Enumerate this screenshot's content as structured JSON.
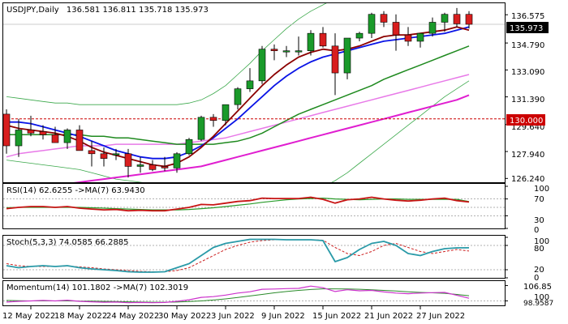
{
  "main": {
    "header": {
      "symbol": "USDJPY,Daily",
      "ohlc": "136.581 136.811 135.718 135.973"
    },
    "price_labels": [
      "136.575",
      "134.790",
      "133.090",
      "131.390",
      "129.640",
      "127.940",
      "126.240"
    ],
    "current_price": "135.973",
    "level_label": "130.000"
  },
  "rsi": {
    "header": "RSI(14) 62.6255  ->MA(7) 63.9430",
    "levels": [
      "100",
      "70",
      "30",
      "0"
    ]
  },
  "stoch": {
    "header": "Stoch(5,3,3) 74.0585 66.2885",
    "levels": [
      "100",
      "80",
      "20",
      "0"
    ]
  },
  "momentum": {
    "header": "Momentum(14) 101.1802  ->MA(7) 102.3019",
    "levels": [
      "106.85",
      "100",
      "98.9587"
    ]
  },
  "date_labels": [
    "12 May 2022",
    "18 May 2022",
    "24 May 2022",
    "30 May 2022",
    "3 Jun 2022",
    "9 Jun 2022",
    "15 Jun 2022",
    "21 Jun 2022",
    "27 Jun 2022"
  ],
  "colors": {
    "bull": "#1a9a2a",
    "bear": "#d81e1e",
    "level_line": "#cc0000",
    "level_box": "#cc0000",
    "price_box": "#000000",
    "ma_dark_red": "#8b0000",
    "ma_blue": "#0a14e6",
    "ma_green": "#1f8a1f",
    "ma_pink": "#e87ae8",
    "ma_magenta": "#e01ed0",
    "bands": "#3aa84a",
    "rsi_line": "#c81414",
    "rsi_ma": "#2a9a2a",
    "stoch_main": "#2a9aa8",
    "stoch_signal": "#cc2020",
    "mom_main": "#cc33cc",
    "mom_ma": "#2a8a2a"
  },
  "chart_data": {
    "type": "candlestick",
    "dates": [
      "2022-05-10",
      "2022-05-11",
      "2022-05-12",
      "2022-05-13",
      "2022-05-16",
      "2022-05-17",
      "2022-05-18",
      "2022-05-19",
      "2022-05-20",
      "2022-05-23",
      "2022-05-24",
      "2022-05-25",
      "2022-05-26",
      "2022-05-27",
      "2022-05-30",
      "2022-05-31",
      "2022-06-01",
      "2022-06-02",
      "2022-06-03",
      "2022-06-06",
      "2022-06-07",
      "2022-06-08",
      "2022-06-09",
      "2022-06-10",
      "2022-06-13",
      "2022-06-14",
      "2022-06-15",
      "2022-06-16",
      "2022-06-17",
      "2022-06-20",
      "2022-06-21",
      "2022-06-22",
      "2022-06-23",
      "2022-06-24",
      "2022-06-27",
      "2022-06-28",
      "2022-06-29",
      "2022-06-30",
      "2022-07-01"
    ],
    "open": [
      130.3,
      128.3,
      129.3,
      129.2,
      129.0,
      128.5,
      129.3,
      128.0,
      127.8,
      127.8,
      127.8,
      127.0,
      127.1,
      127.0,
      126.9,
      127.8,
      128.7,
      130.1,
      129.9,
      130.9,
      131.9,
      132.4,
      134.4,
      134.3,
      134.3,
      134.3,
      135.4,
      134.6,
      132.9,
      135.1,
      135.4,
      136.6,
      136.1,
      135.3,
      134.9,
      135.4,
      136.1,
      136.6,
      136.6
    ],
    "high": [
      130.6,
      130.0,
      130.2,
      129.6,
      129.5,
      129.4,
      129.6,
      128.6,
      128.2,
      128.1,
      128.1,
      127.6,
      127.4,
      127.6,
      127.9,
      128.8,
      130.2,
      130.3,
      130.9,
      132.0,
      133.2,
      134.6,
      134.7,
      134.6,
      135.2,
      135.6,
      135.8,
      135.4,
      135.1,
      135.5,
      136.7,
      136.8,
      136.6,
      135.8,
      135.4,
      136.4,
      136.7,
      137.0,
      136.8
    ],
    "low": [
      127.8,
      127.6,
      128.9,
      128.7,
      128.6,
      128.1,
      128.0,
      127.0,
      127.0,
      127.4,
      126.3,
      126.6,
      126.7,
      126.7,
      126.6,
      127.7,
      128.6,
      129.5,
      129.6,
      130.6,
      131.7,
      132.2,
      133.7,
      133.9,
      134.0,
      134.0,
      134.5,
      131.5,
      132.5,
      134.9,
      135.1,
      135.8,
      134.3,
      134.6,
      134.5,
      135.2,
      135.5,
      135.8,
      135.7
    ],
    "close": [
      128.3,
      129.3,
      129.1,
      129.0,
      128.5,
      129.3,
      128.0,
      127.8,
      127.5,
      127.8,
      127.0,
      127.1,
      126.8,
      126.9,
      127.8,
      128.7,
      130.1,
      129.9,
      130.9,
      131.9,
      132.4,
      134.4,
      134.3,
      134.3,
      134.3,
      135.4,
      134.6,
      132.9,
      135.1,
      135.4,
      136.6,
      136.1,
      135.3,
      134.9,
      135.4,
      136.1,
      136.6,
      136.0,
      135.97
    ],
    "overlays": {
      "ma_dark_red": [
        129.6,
        129.4,
        129.3,
        129.2,
        129.1,
        128.9,
        128.6,
        128.2,
        127.9,
        127.7,
        127.5,
        127.3,
        127.1,
        127.0,
        127.2,
        127.6,
        128.2,
        128.9,
        129.7,
        130.5,
        131.3,
        132.1,
        132.8,
        133.4,
        133.9,
        134.2,
        134.4,
        134.3,
        134.4,
        134.6,
        134.9,
        135.2,
        135.3,
        135.3,
        135.4,
        135.5,
        135.6,
        135.8,
        135.6
      ],
      "ma_blue": [
        129.8,
        129.8,
        129.7,
        129.5,
        129.3,
        129.1,
        128.9,
        128.6,
        128.3,
        128.0,
        127.8,
        127.6,
        127.5,
        127.5,
        127.6,
        127.9,
        128.3,
        128.8,
        129.4,
        130.0,
        130.7,
        131.4,
        132.1,
        132.7,
        133.2,
        133.6,
        133.9,
        134.1,
        134.3,
        134.5,
        134.7,
        134.9,
        135.0,
        135.1,
        135.2,
        135.3,
        135.4,
        135.6,
        135.8
      ],
      "ma_green": [
        129.0,
        129.0,
        129.0,
        129.0,
        129.0,
        129.0,
        129.0,
        128.9,
        128.9,
        128.8,
        128.8,
        128.7,
        128.6,
        128.5,
        128.4,
        128.4,
        128.4,
        128.4,
        128.5,
        128.6,
        128.8,
        129.1,
        129.5,
        129.9,
        130.3,
        130.6,
        130.9,
        131.2,
        131.5,
        131.8,
        132.1,
        132.5,
        132.8,
        133.1,
        133.4,
        133.7,
        134.0,
        134.3,
        134.6
      ],
      "ma_pink": [
        127.6,
        127.8,
        127.9,
        128.0,
        128.1,
        128.2,
        128.3,
        128.3,
        128.3,
        128.4,
        128.4,
        128.4,
        128.4,
        128.4,
        128.4,
        128.5,
        128.6,
        128.7,
        128.8,
        129.0,
        129.2,
        129.4,
        129.6,
        129.8,
        130.0,
        130.2,
        130.4,
        130.6,
        130.8,
        131.0,
        131.2,
        131.4,
        131.6,
        131.8,
        132.0,
        132.2,
        132.4,
        132.6,
        132.8
      ],
      "ma_magenta": [
        125.4,
        125.5,
        125.6,
        125.7,
        125.8,
        125.9,
        126.0,
        126.1,
        126.2,
        126.3,
        126.4,
        126.5,
        126.6,
        126.7,
        126.8,
        126.9,
        127.0,
        127.2,
        127.4,
        127.6,
        127.8,
        128.0,
        128.2,
        128.4,
        128.6,
        128.8,
        129.0,
        129.2,
        129.4,
        129.6,
        129.8,
        130.0,
        130.2,
        130.4,
        130.6,
        130.8,
        131.0,
        131.2,
        131.5
      ],
      "band_upper": [
        131.4,
        131.3,
        131.2,
        131.1,
        131.0,
        131.0,
        130.9,
        130.9,
        130.9,
        130.9,
        130.9,
        130.9,
        130.9,
        130.9,
        130.9,
        131.0,
        131.2,
        131.6,
        132.1,
        132.8,
        133.5,
        134.3,
        135.0,
        135.7,
        136.3,
        136.8,
        137.2,
        137.6,
        138.0,
        138.4,
        138.7,
        139.0,
        139.3,
        139.6,
        139.9,
        140.2,
        140.5,
        140.8,
        141.0
      ],
      "band_lower": [
        127.4,
        127.3,
        127.2,
        127.1,
        127.0,
        126.9,
        126.8,
        126.6,
        126.4,
        126.2,
        126.1,
        126.0,
        125.9,
        125.8,
        125.7,
        125.6,
        125.5,
        125.4,
        125.3,
        125.2,
        125.1,
        125.1,
        125.1,
        125.1,
        125.2,
        125.4,
        125.7,
        126.1,
        126.6,
        127.2,
        127.8,
        128.4,
        129.0,
        129.6,
        130.2,
        130.8,
        131.4,
        131.9,
        132.4
      ]
    },
    "level": 130.0,
    "y_range": [
      126.0,
      137.3
    ],
    "rsi": {
      "range": [
        0,
        100
      ],
      "main": [
        47,
        50,
        52,
        52,
        50,
        52,
        48,
        46,
        44,
        45,
        42,
        43,
        42,
        42,
        46,
        50,
        57,
        56,
        60,
        64,
        66,
        72,
        71,
        71,
        71,
        74,
        69,
        60,
        68,
        70,
        74,
        70,
        67,
        65,
        67,
        70,
        72,
        66,
        62.6
      ],
      "ma": [
        49,
        50,
        50,
        50,
        50,
        50,
        50,
        49,
        48,
        47,
        46,
        45,
        44,
        44,
        44,
        45,
        47,
        49,
        52,
        55,
        58,
        62,
        65,
        68,
        70,
        71,
        72,
        70,
        69,
        68,
        69,
        70,
        70,
        69,
        69,
        69,
        69,
        69,
        63.9
      ]
    },
    "stoch": {
      "range": [
        0,
        100
      ],
      "main": [
        30,
        25,
        28,
        30,
        28,
        30,
        25,
        22,
        20,
        18,
        15,
        14,
        14,
        15,
        25,
        35,
        55,
        75,
        85,
        90,
        95,
        95,
        95,
        94,
        94,
        94,
        92,
        40,
        50,
        70,
        85,
        90,
        80,
        60,
        55,
        65,
        72,
        74,
        74.1
      ],
      "signal": [
        35,
        30,
        28,
        28,
        28,
        29,
        27,
        25,
        22,
        20,
        18,
        16,
        15,
        15,
        18,
        25,
        40,
        55,
        70,
        80,
        88,
        92,
        94,
        94,
        94,
        94,
        93,
        75,
        60,
        55,
        65,
        80,
        85,
        75,
        65,
        60,
        65,
        70,
        66.3
      ]
    },
    "momentum": {
      "range": [
        98.0,
        108.5
      ],
      "main": [
        99.5,
        99.8,
        100.0,
        100.2,
        100.0,
        100.3,
        99.8,
        99.6,
        99.4,
        99.5,
        99.2,
        99.3,
        99.2,
        99.3,
        99.8,
        100.5,
        101.6,
        101.9,
        102.6,
        103.5,
        104.1,
        105.2,
        105.3,
        105.5,
        105.6,
        106.6,
        105.9,
        104.2,
        105.0,
        104.5,
        104.7,
        104.0,
        103.5,
        103.2,
        103.5,
        103.7,
        103.8,
        102.5,
        101.2
      ],
      "ma": [
        100.2,
        100.1,
        100.0,
        100.0,
        100.0,
        100.0,
        99.9,
        99.9,
        99.8,
        99.7,
        99.6,
        99.5,
        99.4,
        99.4,
        99.5,
        99.7,
        100.0,
        100.4,
        100.9,
        101.5,
        102.2,
        102.9,
        103.6,
        104.2,
        104.7,
        105.1,
        105.4,
        105.4,
        105.3,
        105.2,
        105.0,
        104.7,
        104.4,
        104.1,
        103.8,
        103.6,
        103.4,
        102.9,
        102.3
      ]
    }
  }
}
